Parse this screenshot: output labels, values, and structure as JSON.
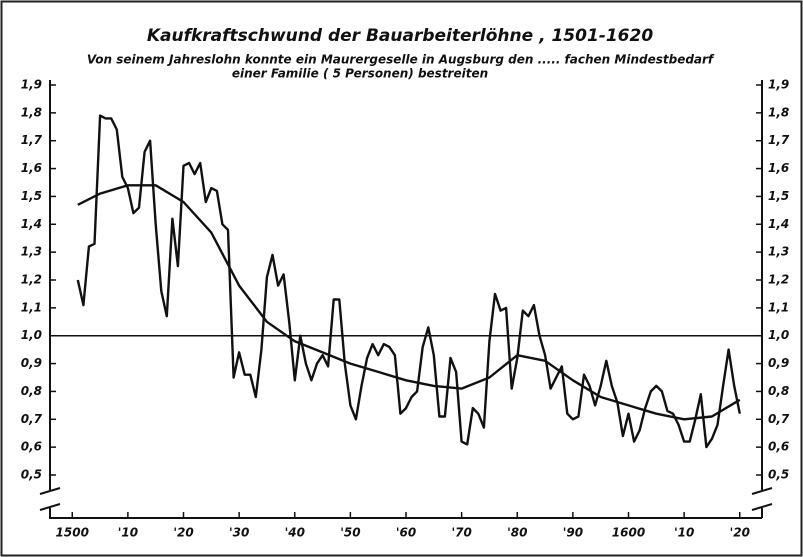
{
  "chart_data": {
    "type": "line",
    "title": "Kaufkraftschwund der Bauarbeiterlöhne , 1501-1620",
    "subtitle": [
      "Von seinem Jahreslohn konnte ein Maurergeselle in Augsburg den ..... fachen Mindestbedarf",
      "einer Familie ( 5 Personen) bestreiten"
    ],
    "xlim": [
      1496,
      1624
    ],
    "ylim": [
      0.5,
      1.9
    ],
    "xticks": [
      {
        "value": 1500,
        "label": "1500"
      },
      {
        "value": 1510,
        "label": "'10"
      },
      {
        "value": 1520,
        "label": "'20"
      },
      {
        "value": 1530,
        "label": "'30"
      },
      {
        "value": 1540,
        "label": "'40"
      },
      {
        "value": 1550,
        "label": "'50"
      },
      {
        "value": 1560,
        "label": "'60"
      },
      {
        "value": 1570,
        "label": "'70"
      },
      {
        "value": 1580,
        "label": "'80"
      },
      {
        "value": 1590,
        "label": "'90"
      },
      {
        "value": 1600,
        "label": "1600"
      },
      {
        "value": 1610,
        "label": "'10"
      },
      {
        "value": 1620,
        "label": "'20"
      }
    ],
    "yticks": [
      {
        "value": 0.5,
        "label": "0,5"
      },
      {
        "value": 0.6,
        "label": "0,6"
      },
      {
        "value": 0.7,
        "label": "0,7"
      },
      {
        "value": 0.8,
        "label": "0,8"
      },
      {
        "value": 0.9,
        "label": "0,9"
      },
      {
        "value": 1.0,
        "label": "1,0"
      },
      {
        "value": 1.1,
        "label": "1,1"
      },
      {
        "value": 1.2,
        "label": "1,2"
      },
      {
        "value": 1.3,
        "label": "1,3"
      },
      {
        "value": 1.4,
        "label": "1,4"
      },
      {
        "value": 1.5,
        "label": "1,5"
      },
      {
        "value": 1.6,
        "label": "1,6"
      },
      {
        "value": 1.7,
        "label": "1,7"
      },
      {
        "value": 1.8,
        "label": "1,8"
      },
      {
        "value": 1.9,
        "label": "1,9"
      }
    ],
    "reference_line": 1.0,
    "series": [
      {
        "color": "#111111",
        "x": [
          1501,
          1502,
          1503,
          1504,
          1505,
          1506,
          1507,
          1508,
          1509,
          1510,
          1511,
          1512,
          1513,
          1514,
          1515,
          1516,
          1517,
          1518,
          1519,
          1520,
          1521,
          1522,
          1523,
          1524,
          1525,
          1526,
          1527,
          1528,
          1529,
          1530,
          1531,
          1532,
          1533,
          1534,
          1535,
          1536,
          1537,
          1538,
          1539,
          1540,
          1541,
          1542,
          1543,
          1544,
          1545,
          1546,
          1547,
          1548,
          1549,
          1550,
          1551,
          1552,
          1553,
          1554,
          1555,
          1556,
          1557,
          1558,
          1559,
          1560,
          1561,
          1562,
          1563,
          1564,
          1565,
          1566,
          1567,
          1568,
          1569,
          1570,
          1571,
          1572,
          1573,
          1574,
          1575,
          1576,
          1577,
          1578,
          1579,
          1580,
          1581,
          1582,
          1583,
          1584,
          1585,
          1586,
          1587,
          1588,
          1589,
          1590,
          1591,
          1592,
          1593,
          1594,
          1595,
          1596,
          1597,
          1598,
          1599,
          1600,
          1601,
          1602,
          1603,
          1604,
          1605,
          1606,
          1607,
          1608,
          1609,
          1610,
          1611,
          1612,
          1613,
          1614,
          1615,
          1616,
          1617,
          1618,
          1619,
          1620
        ],
        "values": [
          1.2,
          1.11,
          1.32,
          1.33,
          1.79,
          1.78,
          1.78,
          1.74,
          1.57,
          1.53,
          1.44,
          1.46,
          1.66,
          1.7,
          1.4,
          1.16,
          1.07,
          1.42,
          1.25,
          1.61,
          1.62,
          1.58,
          1.62,
          1.48,
          1.53,
          1.52,
          1.4,
          1.38,
          0.85,
          0.94,
          0.86,
          0.86,
          0.78,
          0.95,
          1.21,
          1.29,
          1.18,
          1.22,
          1.05,
          0.84,
          1.0,
          0.9,
          0.84,
          0.9,
          0.93,
          0.89,
          1.13,
          1.13,
          0.9,
          0.75,
          0.7,
          0.82,
          0.92,
          0.97,
          0.93,
          0.97,
          0.96,
          0.93,
          0.72,
          0.74,
          0.78,
          0.8,
          0.96,
          1.03,
          0.93,
          0.71,
          0.71,
          0.92,
          0.87,
          0.62,
          0.61,
          0.74,
          0.72,
          0.67,
          0.98,
          1.15,
          1.09,
          1.1,
          0.81,
          0.92,
          1.09,
          1.07,
          1.11,
          1.0,
          0.93,
          0.81,
          0.85,
          0.89,
          0.72,
          0.7,
          0.71,
          0.86,
          0.82,
          0.75,
          0.82,
          0.91,
          0.82,
          0.76,
          0.64,
          0.72,
          0.62,
          0.66,
          0.74,
          0.8,
          0.82,
          0.8,
          0.73,
          0.72,
          0.68,
          0.62,
          0.62,
          0.7,
          0.79,
          0.6,
          0.63,
          0.68,
          0.82,
          0.95,
          0.82,
          0.72
        ]
      },
      {
        "color": "#111111",
        "x": [
          1501,
          1505,
          1510,
          1515,
          1520,
          1525,
          1530,
          1535,
          1540,
          1545,
          1550,
          1555,
          1560,
          1565,
          1570,
          1575,
          1580,
          1585,
          1590,
          1595,
          1600,
          1605,
          1610,
          1615,
          1620
        ],
        "values": [
          1.47,
          1.51,
          1.54,
          1.54,
          1.48,
          1.37,
          1.18,
          1.05,
          0.98,
          0.94,
          0.9,
          0.87,
          0.84,
          0.82,
          0.81,
          0.85,
          0.93,
          0.91,
          0.84,
          0.78,
          0.75,
          0.72,
          0.7,
          0.71,
          0.77
        ]
      }
    ]
  }
}
